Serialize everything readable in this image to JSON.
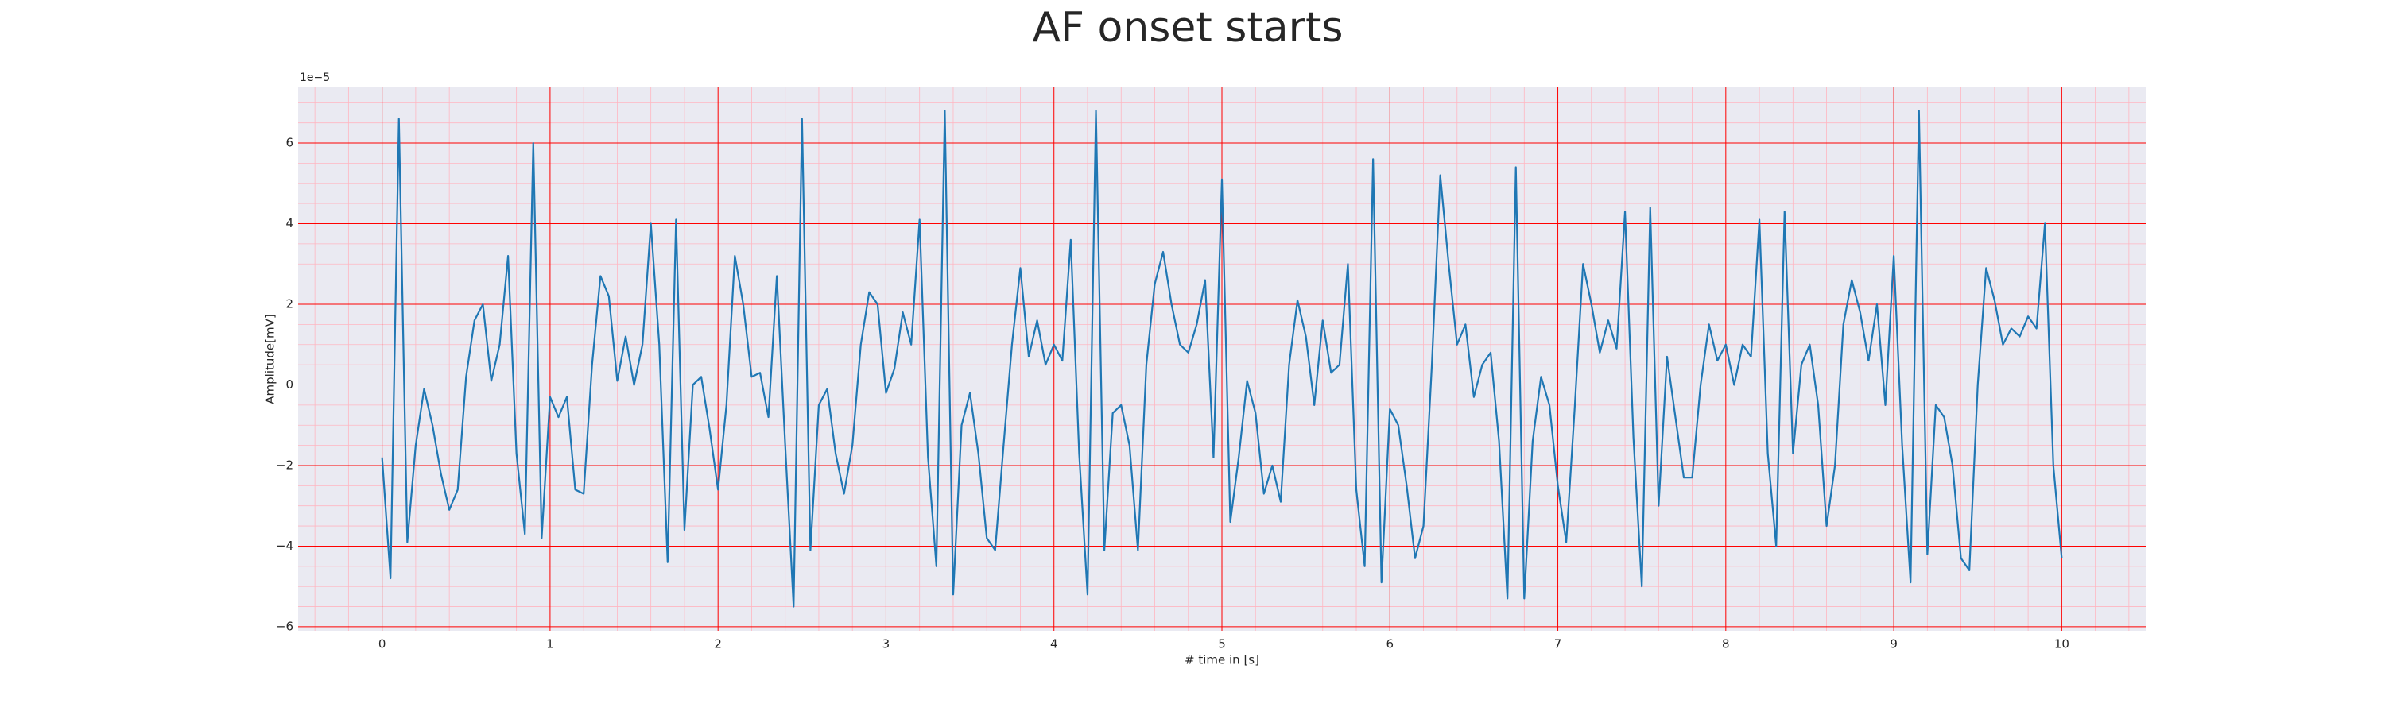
{
  "chart_data": {
    "type": "line",
    "title": "AF onset starts",
    "xlabel": "# time in [s]",
    "ylabel": "Amplitude[mV]",
    "offset_text": "1e−5",
    "x": [
      0,
      0.05,
      0.1,
      0.15,
      0.2,
      0.25,
      0.3,
      0.35,
      0.4,
      0.45,
      0.5,
      0.55,
      0.6,
      0.65,
      0.7,
      0.75,
      0.8,
      0.85,
      0.9,
      0.95,
      1,
      1.05,
      1.1,
      1.15,
      1.2,
      1.25,
      1.3,
      1.35,
      1.4,
      1.45,
      1.5,
      1.55,
      1.6,
      1.65,
      1.7,
      1.75,
      1.8,
      1.85,
      1.9,
      1.95,
      2,
      2.05,
      2.1,
      2.15,
      2.2,
      2.25,
      2.3,
      2.35,
      2.4,
      2.45,
      2.5,
      2.55,
      2.6,
      2.65,
      2.7,
      2.75,
      2.8,
      2.85,
      2.9,
      2.95,
      3,
      3.05,
      3.1,
      3.15,
      3.2,
      3.25,
      3.3,
      3.35,
      3.4,
      3.45,
      3.5,
      3.55,
      3.6,
      3.65,
      3.7,
      3.75,
      3.8,
      3.85,
      3.9,
      3.95,
      4,
      4.05,
      4.1,
      4.15,
      4.2,
      4.25,
      4.3,
      4.35,
      4.4,
      4.45,
      4.5,
      4.55,
      4.6,
      4.65,
      4.7,
      4.75,
      4.8,
      4.85,
      4.9,
      4.95,
      5,
      5.05,
      5.1,
      5.15,
      5.2,
      5.25,
      5.3,
      5.35,
      5.4,
      5.45,
      5.5,
      5.55,
      5.6,
      5.65,
      5.7,
      5.75,
      5.8,
      5.85,
      5.9,
      5.95,
      6,
      6.05,
      6.1,
      6.15,
      6.2,
      6.25,
      6.3,
      6.35,
      6.4,
      6.45,
      6.5,
      6.55,
      6.6,
      6.65,
      6.7,
      6.75,
      6.8,
      6.85,
      6.9,
      6.95,
      7,
      7.05,
      7.1,
      7.15,
      7.2,
      7.25,
      7.3,
      7.35,
      7.4,
      7.45,
      7.5,
      7.55,
      7.6,
      7.65,
      7.7,
      7.75,
      7.8,
      7.85,
      7.9,
      7.95,
      8,
      8.05,
      8.1,
      8.15,
      8.2,
      8.25,
      8.3,
      8.35,
      8.4,
      8.45,
      8.5,
      8.55,
      8.6,
      8.65,
      8.7,
      8.75,
      8.8,
      8.85,
      8.9,
      8.95,
      9,
      9.05,
      9.1,
      9.15,
      9.2,
      9.25,
      9.3,
      9.35,
      9.4,
      9.45,
      9.5,
      9.55,
      9.6,
      9.65,
      9.7,
      9.75,
      9.8,
      9.85,
      9.9,
      9.95,
      10
    ],
    "series": [
      {
        "color": "#1f77b4",
        "values": [
          -1.8,
          -4.8,
          6.6,
          -3.9,
          -1.5,
          -0.1,
          -1.0,
          -2.2,
          -3.1,
          -2.6,
          0.2,
          1.6,
          2.0,
          0.1,
          1.0,
          3.2,
          -1.7,
          -3.7,
          6.0,
          -3.8,
          -0.3,
          -0.8,
          -0.3,
          -2.6,
          -2.7,
          0.5,
          2.7,
          2.2,
          0.1,
          1.2,
          0.0,
          1.0,
          4.0,
          1.0,
          -4.4,
          4.1,
          -3.6,
          0.0,
          0.2,
          -1.1,
          -2.6,
          -0.5,
          3.2,
          2.0,
          0.2,
          0.3,
          -0.8,
          2.7,
          -1.5,
          -5.5,
          6.6,
          -4.1,
          -0.5,
          -0.1,
          -1.7,
          -2.7,
          -1.5,
          1.0,
          2.3,
          2.0,
          -0.2,
          0.4,
          1.8,
          1.0,
          4.1,
          -1.8,
          -4.5,
          6.8,
          -5.2,
          -1.0,
          -0.2,
          -1.7,
          -3.8,
          -4.1,
          -1.5,
          1.0,
          2.9,
          0.7,
          1.6,
          0.5,
          1.0,
          0.6,
          3.6,
          -1.7,
          -5.2,
          6.8,
          -4.1,
          -0.7,
          -0.5,
          -1.5,
          -4.1,
          0.5,
          2.5,
          3.3,
          2.0,
          1.0,
          0.8,
          1.5,
          2.6,
          -1.8,
          5.1,
          -3.4,
          -1.8,
          0.1,
          -0.7,
          -2.7,
          -2.0,
          -2.9,
          0.5,
          2.1,
          1.2,
          -0.5,
          1.6,
          0.3,
          0.5,
          3.0,
          -2.6,
          -4.5,
          5.6,
          -4.9,
          -0.6,
          -1.0,
          -2.5,
          -4.3,
          -3.5,
          0.5,
          5.2,
          3.0,
          1.0,
          1.5,
          -0.3,
          0.5,
          0.8,
          -1.4,
          -5.3,
          5.4,
          -5.3,
          -1.4,
          0.2,
          -0.5,
          -2.5,
          -3.9,
          -0.6,
          3.0,
          2.0,
          0.8,
          1.6,
          0.9,
          4.3,
          -1.3,
          -5.0,
          4.4,
          -3.0,
          0.7,
          -0.8,
          -2.3,
          -2.3,
          0.0,
          1.5,
          0.6,
          1.0,
          0.0,
          1.0,
          0.7,
          4.1,
          -1.7,
          -4.0,
          4.3,
          -1.7,
          0.5,
          1.0,
          -0.5,
          -3.5,
          -2.0,
          1.5,
          2.6,
          1.8,
          0.6,
          2.0,
          -0.5,
          3.2,
          -1.5,
          -4.9,
          6.8,
          -4.2,
          -0.5,
          -0.8,
          -2.0,
          -4.3,
          -4.6,
          0.0,
          2.9,
          2.1,
          1.0,
          1.4,
          1.2,
          1.7,
          1.4,
          4.0,
          -2.0,
          -4.3
        ]
      }
    ],
    "xlim": [
      -0.5,
      10.5
    ],
    "ylim": [
      -6.1,
      7.4
    ],
    "xticks": [
      0,
      1,
      2,
      3,
      4,
      5,
      6,
      7,
      8,
      9,
      10
    ],
    "yticks": [
      {
        "value": -6,
        "label": "−6"
      },
      {
        "value": -4,
        "label": "−4"
      },
      {
        "value": -2,
        "label": "−2"
      },
      0,
      2,
      4,
      6
    ],
    "grid": true,
    "grid_color": "#ff0000",
    "minor_grid_color": "#ffb6c1",
    "minor_divisions": {
      "x": 5,
      "y": 4
    },
    "background": "#eaeaf2"
  }
}
